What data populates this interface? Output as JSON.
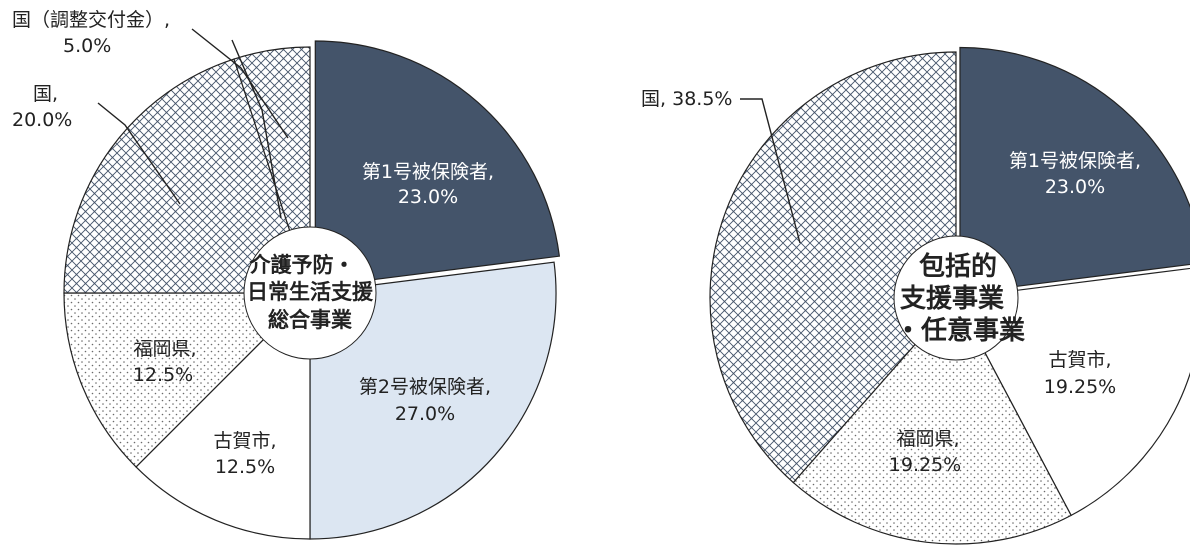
{
  "chart_data": [
    {
      "type": "pie",
      "center_label": [
        "介護予防・",
        "日常生活支援",
        "総合事業"
      ],
      "slices": [
        {
          "name": "第1号被保険者",
          "value": 23.0,
          "label": "23.0%",
          "color": "#44546a",
          "pattern": "solid"
        },
        {
          "name": "第2号被保険者",
          "value": 27.0,
          "label": "27.0%",
          "color": "#dce6f2",
          "pattern": "solid"
        },
        {
          "name": "古賀市",
          "value": 12.5,
          "label": "12.5%",
          "color": "#ffffff",
          "pattern": "solid"
        },
        {
          "name": "福岡県",
          "value": 12.5,
          "label": "12.5%",
          "color": "#ffffff",
          "pattern": "dots"
        },
        {
          "name": "国",
          "value": 20.0,
          "label": "20.0%",
          "color": "#ffffff",
          "pattern": "crosshatch"
        },
        {
          "name": "国（調整交付金）",
          "value": 5.0,
          "label": "5.0%",
          "color": "#ffffff",
          "pattern": "crosshatch"
        }
      ]
    },
    {
      "type": "pie",
      "center_label": [
        "包括的",
        "支援事業",
        "・任意事業"
      ],
      "slices": [
        {
          "name": "第1号被保険者",
          "value": 23.0,
          "label": "23.0%",
          "color": "#44546a",
          "pattern": "solid"
        },
        {
          "name": "古賀市",
          "value": 19.25,
          "label": "19.25%",
          "color": "#ffffff",
          "pattern": "solid"
        },
        {
          "name": "福岡県",
          "value": 19.25,
          "label": "19.25%",
          "color": "#ffffff",
          "pattern": "dots"
        },
        {
          "name": "国",
          "value": 38.5,
          "label": "38.5%",
          "color": "#ffffff",
          "pattern": "crosshatch"
        }
      ]
    }
  ]
}
